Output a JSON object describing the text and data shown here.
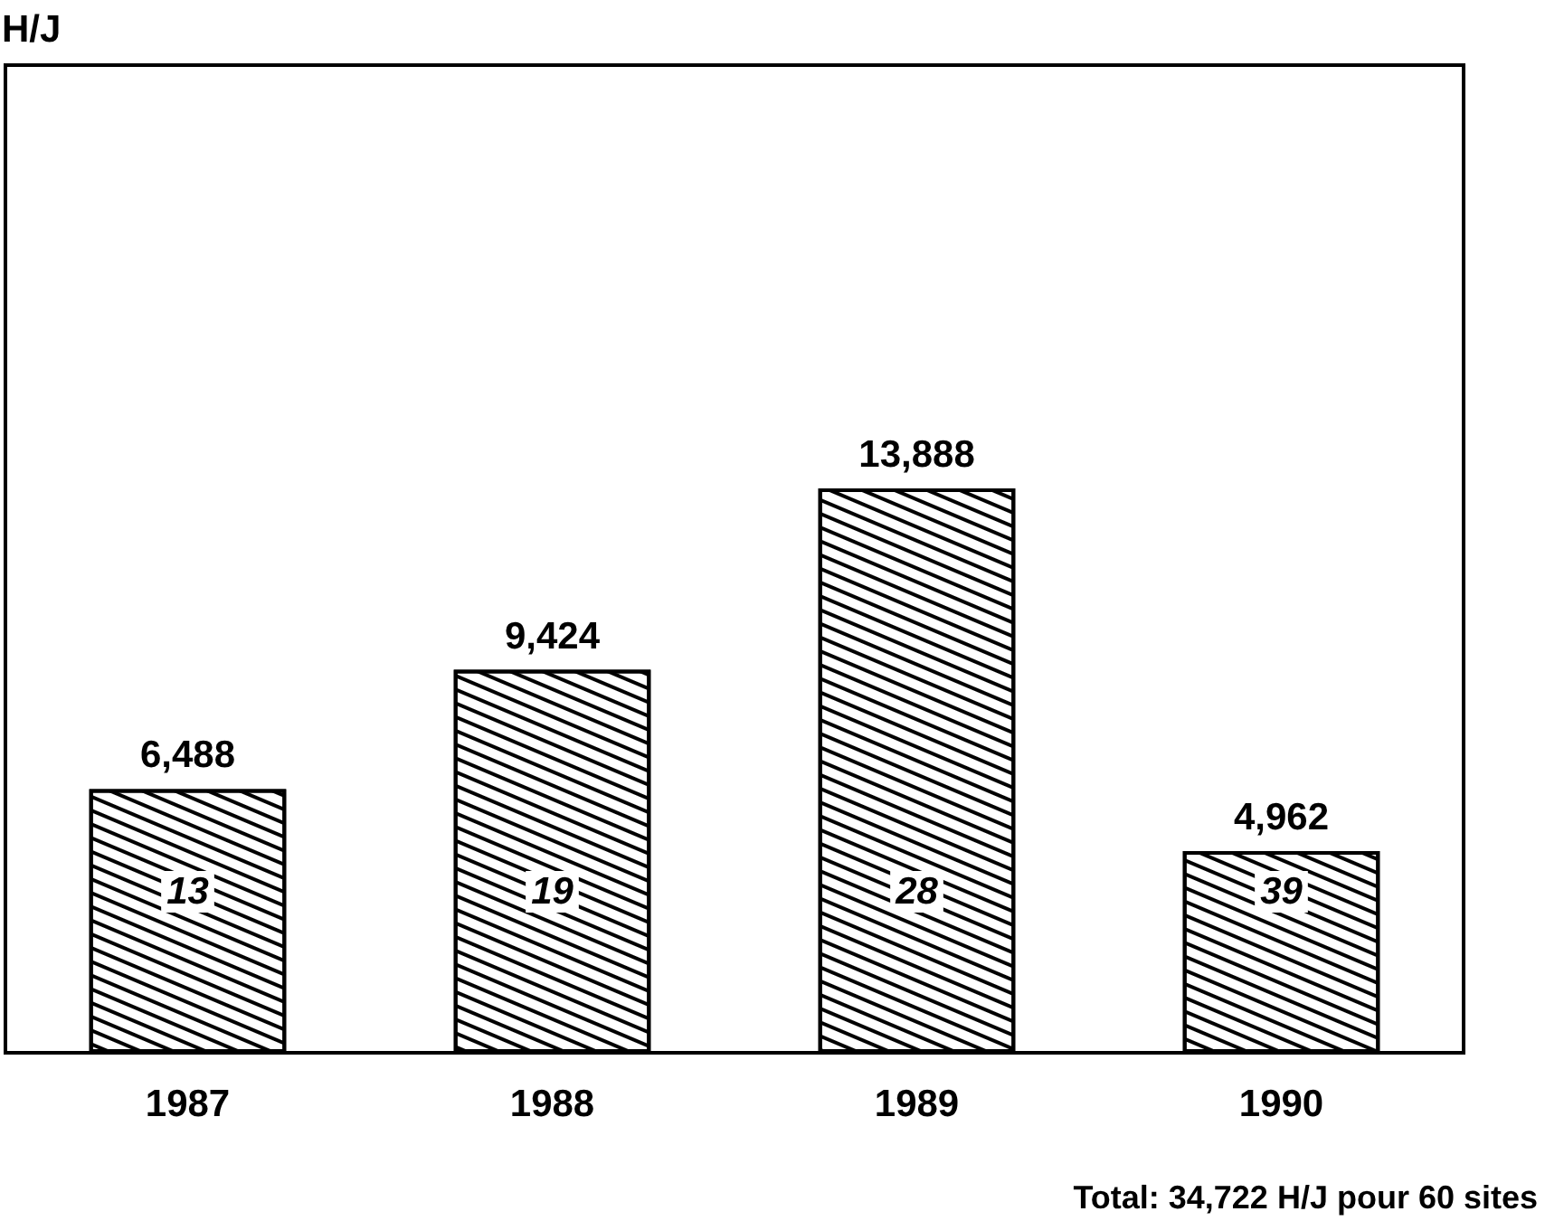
{
  "chart_data": {
    "type": "bar",
    "categories": [
      "1987",
      "1988",
      "1989",
      "1990"
    ],
    "values": [
      6488,
      9424,
      13888,
      4962
    ],
    "color": "#ffffff",
    "value_labels": [
      "6,488",
      "9,424",
      "13,888",
      "4,962"
    ],
    "annotations": [
      "H/J",
      "13",
      "19",
      "28",
      "39",
      "Total: 34,722 H/J pour 60 sites"
    ]
  }
}
